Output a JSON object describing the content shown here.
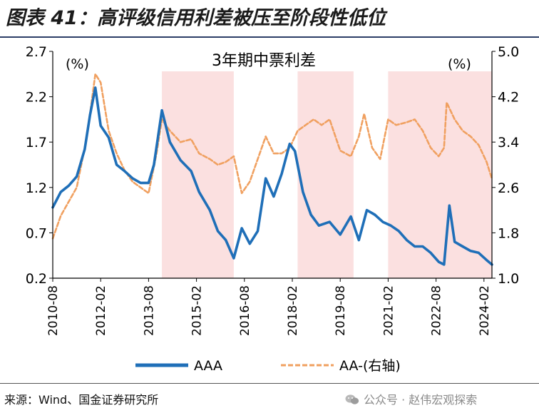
{
  "figure": {
    "title": "图表 41：高评级信用利差被压至阶段性低位",
    "source": "来源：Wind、国金证券研究所",
    "watermark": "公众号 · 赵伟宏观探索"
  },
  "chart_data": {
    "type": "line",
    "title": "3年期中票利差",
    "left_unit": "(%)",
    "right_unit": "(%)",
    "y_left": {
      "range": [
        0.2,
        2.7
      ],
      "ticks": [
        "0.2",
        "0.7",
        "1.2",
        "1.7",
        "2.2",
        "2.7"
      ]
    },
    "y_right": {
      "range": [
        1.0,
        5.0
      ],
      "ticks": [
        "1.0",
        "1.8",
        "2.6",
        "3.4",
        "4.2",
        "5.0"
      ]
    },
    "x_range": [
      "2010-08",
      "2024-05"
    ],
    "x_ticks": [
      "2010-08",
      "2012-02",
      "2013-08",
      "2015-02",
      "2016-08",
      "2018-02",
      "2019-08",
      "2021-02",
      "2022-08",
      "2024-02"
    ],
    "shaded_periods": [
      [
        "2014-01",
        "2016-04"
      ],
      [
        "2018-04",
        "2020-01"
      ],
      [
        "2021-02",
        "2024-05"
      ]
    ],
    "series": [
      {
        "name": "AAA",
        "axis": "left",
        "color": "#1f6fb8",
        "style": "solid",
        "points": [
          [
            "2010-08",
            0.98
          ],
          [
            "2010-11",
            1.15
          ],
          [
            "2011-02",
            1.22
          ],
          [
            "2011-05",
            1.32
          ],
          [
            "2011-08",
            1.62
          ],
          [
            "2011-10",
            2.0
          ],
          [
            "2011-12",
            2.3
          ],
          [
            "2012-02",
            1.88
          ],
          [
            "2012-05",
            1.75
          ],
          [
            "2012-08",
            1.45
          ],
          [
            "2012-11",
            1.38
          ],
          [
            "2013-02",
            1.3
          ],
          [
            "2013-05",
            1.25
          ],
          [
            "2013-08",
            1.25
          ],
          [
            "2013-10",
            1.45
          ],
          [
            "2014-01",
            2.05
          ],
          [
            "2014-04",
            1.7
          ],
          [
            "2014-08",
            1.5
          ],
          [
            "2014-12",
            1.38
          ],
          [
            "2015-03",
            1.15
          ],
          [
            "2015-07",
            0.95
          ],
          [
            "2015-10",
            0.72
          ],
          [
            "2016-01",
            0.62
          ],
          [
            "2016-04",
            0.42
          ],
          [
            "2016-07",
            0.75
          ],
          [
            "2016-10",
            0.58
          ],
          [
            "2017-01",
            0.72
          ],
          [
            "2017-04",
            1.3
          ],
          [
            "2017-07",
            1.1
          ],
          [
            "2017-10",
            1.35
          ],
          [
            "2018-01",
            1.68
          ],
          [
            "2018-03",
            1.6
          ],
          [
            "2018-06",
            1.15
          ],
          [
            "2018-09",
            0.9
          ],
          [
            "2018-12",
            0.78
          ],
          [
            "2019-04",
            0.82
          ],
          [
            "2019-08",
            0.68
          ],
          [
            "2019-12",
            0.88
          ],
          [
            "2020-03",
            0.62
          ],
          [
            "2020-06",
            0.95
          ],
          [
            "2020-09",
            0.9
          ],
          [
            "2020-12",
            0.82
          ],
          [
            "2021-03",
            0.78
          ],
          [
            "2021-06",
            0.72
          ],
          [
            "2021-09",
            0.62
          ],
          [
            "2021-12",
            0.55
          ],
          [
            "2022-03",
            0.55
          ],
          [
            "2022-06",
            0.48
          ],
          [
            "2022-09",
            0.38
          ],
          [
            "2022-11",
            0.35
          ],
          [
            "2023-01",
            1.0
          ],
          [
            "2023-03",
            0.6
          ],
          [
            "2023-06",
            0.55
          ],
          [
            "2023-09",
            0.5
          ],
          [
            "2023-12",
            0.48
          ],
          [
            "2024-03",
            0.4
          ],
          [
            "2024-05",
            0.35
          ]
        ]
      },
      {
        "name": "AA-(右轴)",
        "axis": "right",
        "color": "#f0a060",
        "style": "dashed",
        "points": [
          [
            "2010-08",
            1.7
          ],
          [
            "2010-11",
            2.1
          ],
          [
            "2011-02",
            2.35
          ],
          [
            "2011-05",
            2.6
          ],
          [
            "2011-08",
            3.3
          ],
          [
            "2011-10",
            3.9
          ],
          [
            "2011-12",
            4.6
          ],
          [
            "2012-02",
            4.45
          ],
          [
            "2012-05",
            3.6
          ],
          [
            "2012-08",
            3.2
          ],
          [
            "2012-11",
            2.9
          ],
          [
            "2013-02",
            2.7
          ],
          [
            "2013-05",
            2.6
          ],
          [
            "2013-08",
            2.5
          ],
          [
            "2013-11",
            3.2
          ],
          [
            "2014-01",
            3.8
          ],
          [
            "2014-04",
            3.6
          ],
          [
            "2014-08",
            3.4
          ],
          [
            "2014-12",
            3.45
          ],
          [
            "2015-03",
            3.2
          ],
          [
            "2015-07",
            3.1
          ],
          [
            "2015-10",
            3.0
          ],
          [
            "2016-01",
            3.05
          ],
          [
            "2016-04",
            3.15
          ],
          [
            "2016-07",
            2.5
          ],
          [
            "2016-10",
            2.7
          ],
          [
            "2017-01",
            3.1
          ],
          [
            "2017-04",
            3.5
          ],
          [
            "2017-07",
            3.2
          ],
          [
            "2017-10",
            3.2
          ],
          [
            "2018-01",
            3.3
          ],
          [
            "2018-04",
            3.6
          ],
          [
            "2018-07",
            3.7
          ],
          [
            "2018-10",
            3.8
          ],
          [
            "2019-01",
            3.7
          ],
          [
            "2019-04",
            3.8
          ],
          [
            "2019-08",
            3.25
          ],
          [
            "2019-12",
            3.15
          ],
          [
            "2020-03",
            3.5
          ],
          [
            "2020-05",
            3.9
          ],
          [
            "2020-08",
            3.3
          ],
          [
            "2020-11",
            3.1
          ],
          [
            "2021-02",
            3.8
          ],
          [
            "2021-05",
            3.7
          ],
          [
            "2021-09",
            3.75
          ],
          [
            "2021-12",
            3.8
          ],
          [
            "2022-03",
            3.6
          ],
          [
            "2022-06",
            3.3
          ],
          [
            "2022-09",
            3.15
          ],
          [
            "2022-11",
            3.3
          ],
          [
            "2022-12",
            4.1
          ],
          [
            "2023-03",
            3.8
          ],
          [
            "2023-06",
            3.6
          ],
          [
            "2023-09",
            3.5
          ],
          [
            "2023-12",
            3.35
          ],
          [
            "2024-03",
            3.05
          ],
          [
            "2024-05",
            2.75
          ]
        ]
      }
    ],
    "legend": {
      "position": "bottom",
      "items": [
        "AAA",
        "AA-(右轴)"
      ]
    }
  },
  "colors": {
    "shade": "#fbe0e0",
    "aaa": "#1f6fb8",
    "aa_minus": "#f0a060"
  }
}
